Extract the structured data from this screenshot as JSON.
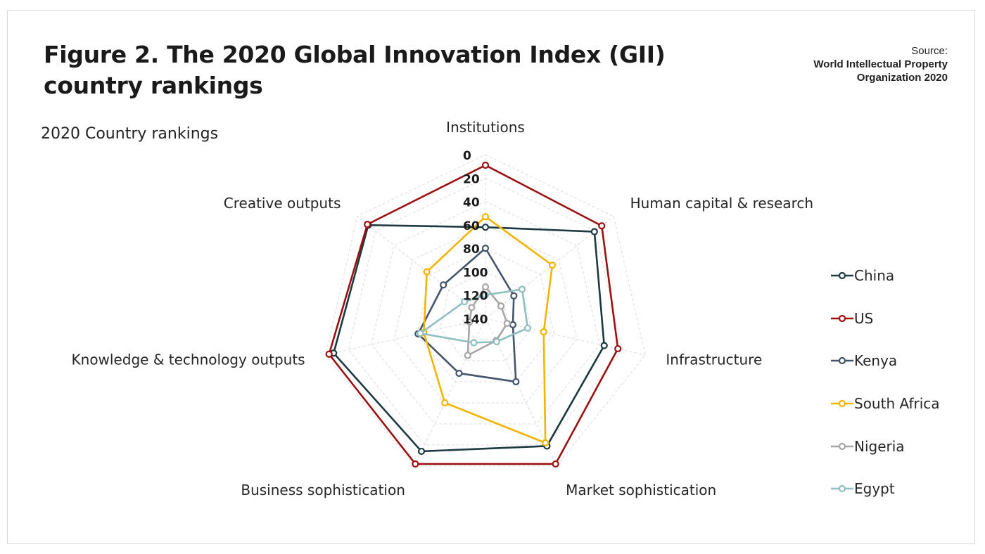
{
  "title": "Figure 2. The 2020 Global Innovation Index (GII) country rankings",
  "source": {
    "label": "Source:",
    "organization": "World Intellectual Property\nOrganization 2020"
  },
  "chart_data": {
    "type": "radar",
    "subtitle": "2020 Country rankings",
    "axes": [
      "Institutions",
      "Human capital & research",
      "Infrastructure",
      "Market sophistication",
      "Business sophistication",
      "Knowledge & technology outputs",
      "Creative outputs"
    ],
    "scale": {
      "min": 0,
      "max": 140,
      "reversed": true,
      "ticks": [
        0,
        20,
        40,
        60,
        80,
        100,
        120,
        140
      ]
    },
    "grid": true,
    "legend_position": "right",
    "series": [
      {
        "name": "China",
        "color": "#1c3a40",
        "values": [
          62,
          21,
          36,
          19,
          14,
          7,
          12
        ]
      },
      {
        "name": "US",
        "color": "#9b1111",
        "values": [
          9,
          13,
          24,
          2,
          2,
          3,
          11
        ]
      },
      {
        "name": "Kenya",
        "color": "#44546a",
        "values": [
          80,
          109,
          116,
          80,
          88,
          81,
          94
        ]
      },
      {
        "name": "South Africa",
        "color": "#f4b400",
        "values": [
          53,
          67,
          89,
          22,
          60,
          86,
          76
        ]
      },
      {
        "name": "Nigeria",
        "color": "#a6a6a6",
        "values": [
          113,
          123,
          121,
          119,
          105,
          126,
          125
        ]
      },
      {
        "name": "Egypt",
        "color": "#8fbfc0",
        "values": [
          120,
          100,
          103,
          118,
          117,
          83,
          117
        ]
      }
    ]
  }
}
